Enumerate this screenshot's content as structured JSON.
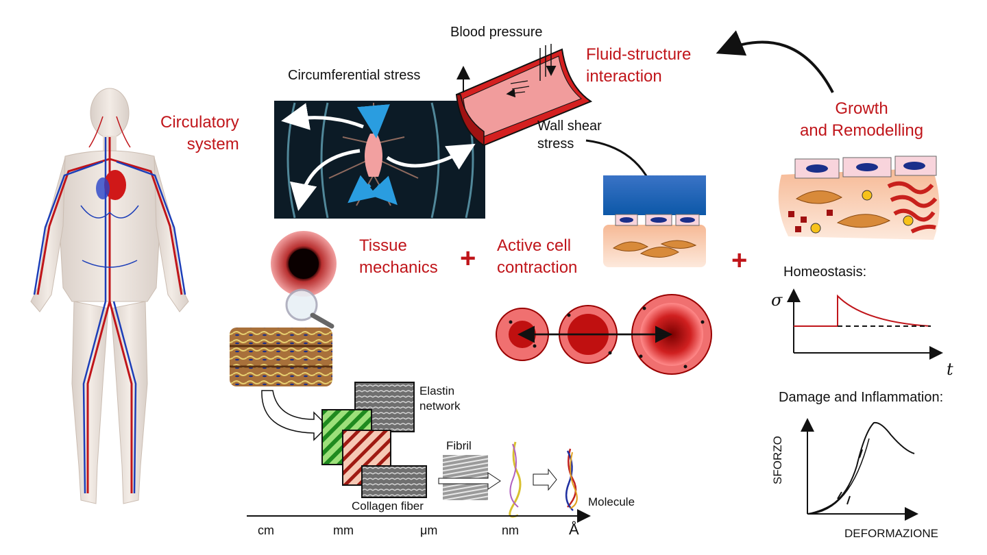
{
  "labels": {
    "circulatory": "Circulatory\nsystem",
    "blood_pressure": "Blood pressure",
    "circ_stress": "Circumferential stress",
    "fsi": "Fluid-structure\ninteraction",
    "wall_shear": "Wall shear\nstress",
    "growth": "Growth\nand Remodelling",
    "tissue": "Tissue\nmechanics",
    "active": "Active cell\ncontraction",
    "homeostasis": "Homeostasis:",
    "damage": "Damage and Inflammation:",
    "elastin": "Elastin\nnetwork",
    "fibril": "Fibril",
    "collagen": "Collagen fiber",
    "molecule": "Molecule",
    "plus": "+"
  },
  "scale_axis": [
    "cm",
    "mm",
    "μm",
    "nm",
    "Å"
  ],
  "homeostasis_chart": {
    "ylabel": "σ",
    "xlabel": "t"
  },
  "damage_chart": {
    "ylabel": "SFORZO",
    "xlabel": "DEFORMAZIONE"
  },
  "colors": {
    "accent_red": "#c0151a",
    "artery": "#d42020",
    "cell_blue": "#1a2f8a",
    "tissue_peach": "#f7c7a3"
  }
}
